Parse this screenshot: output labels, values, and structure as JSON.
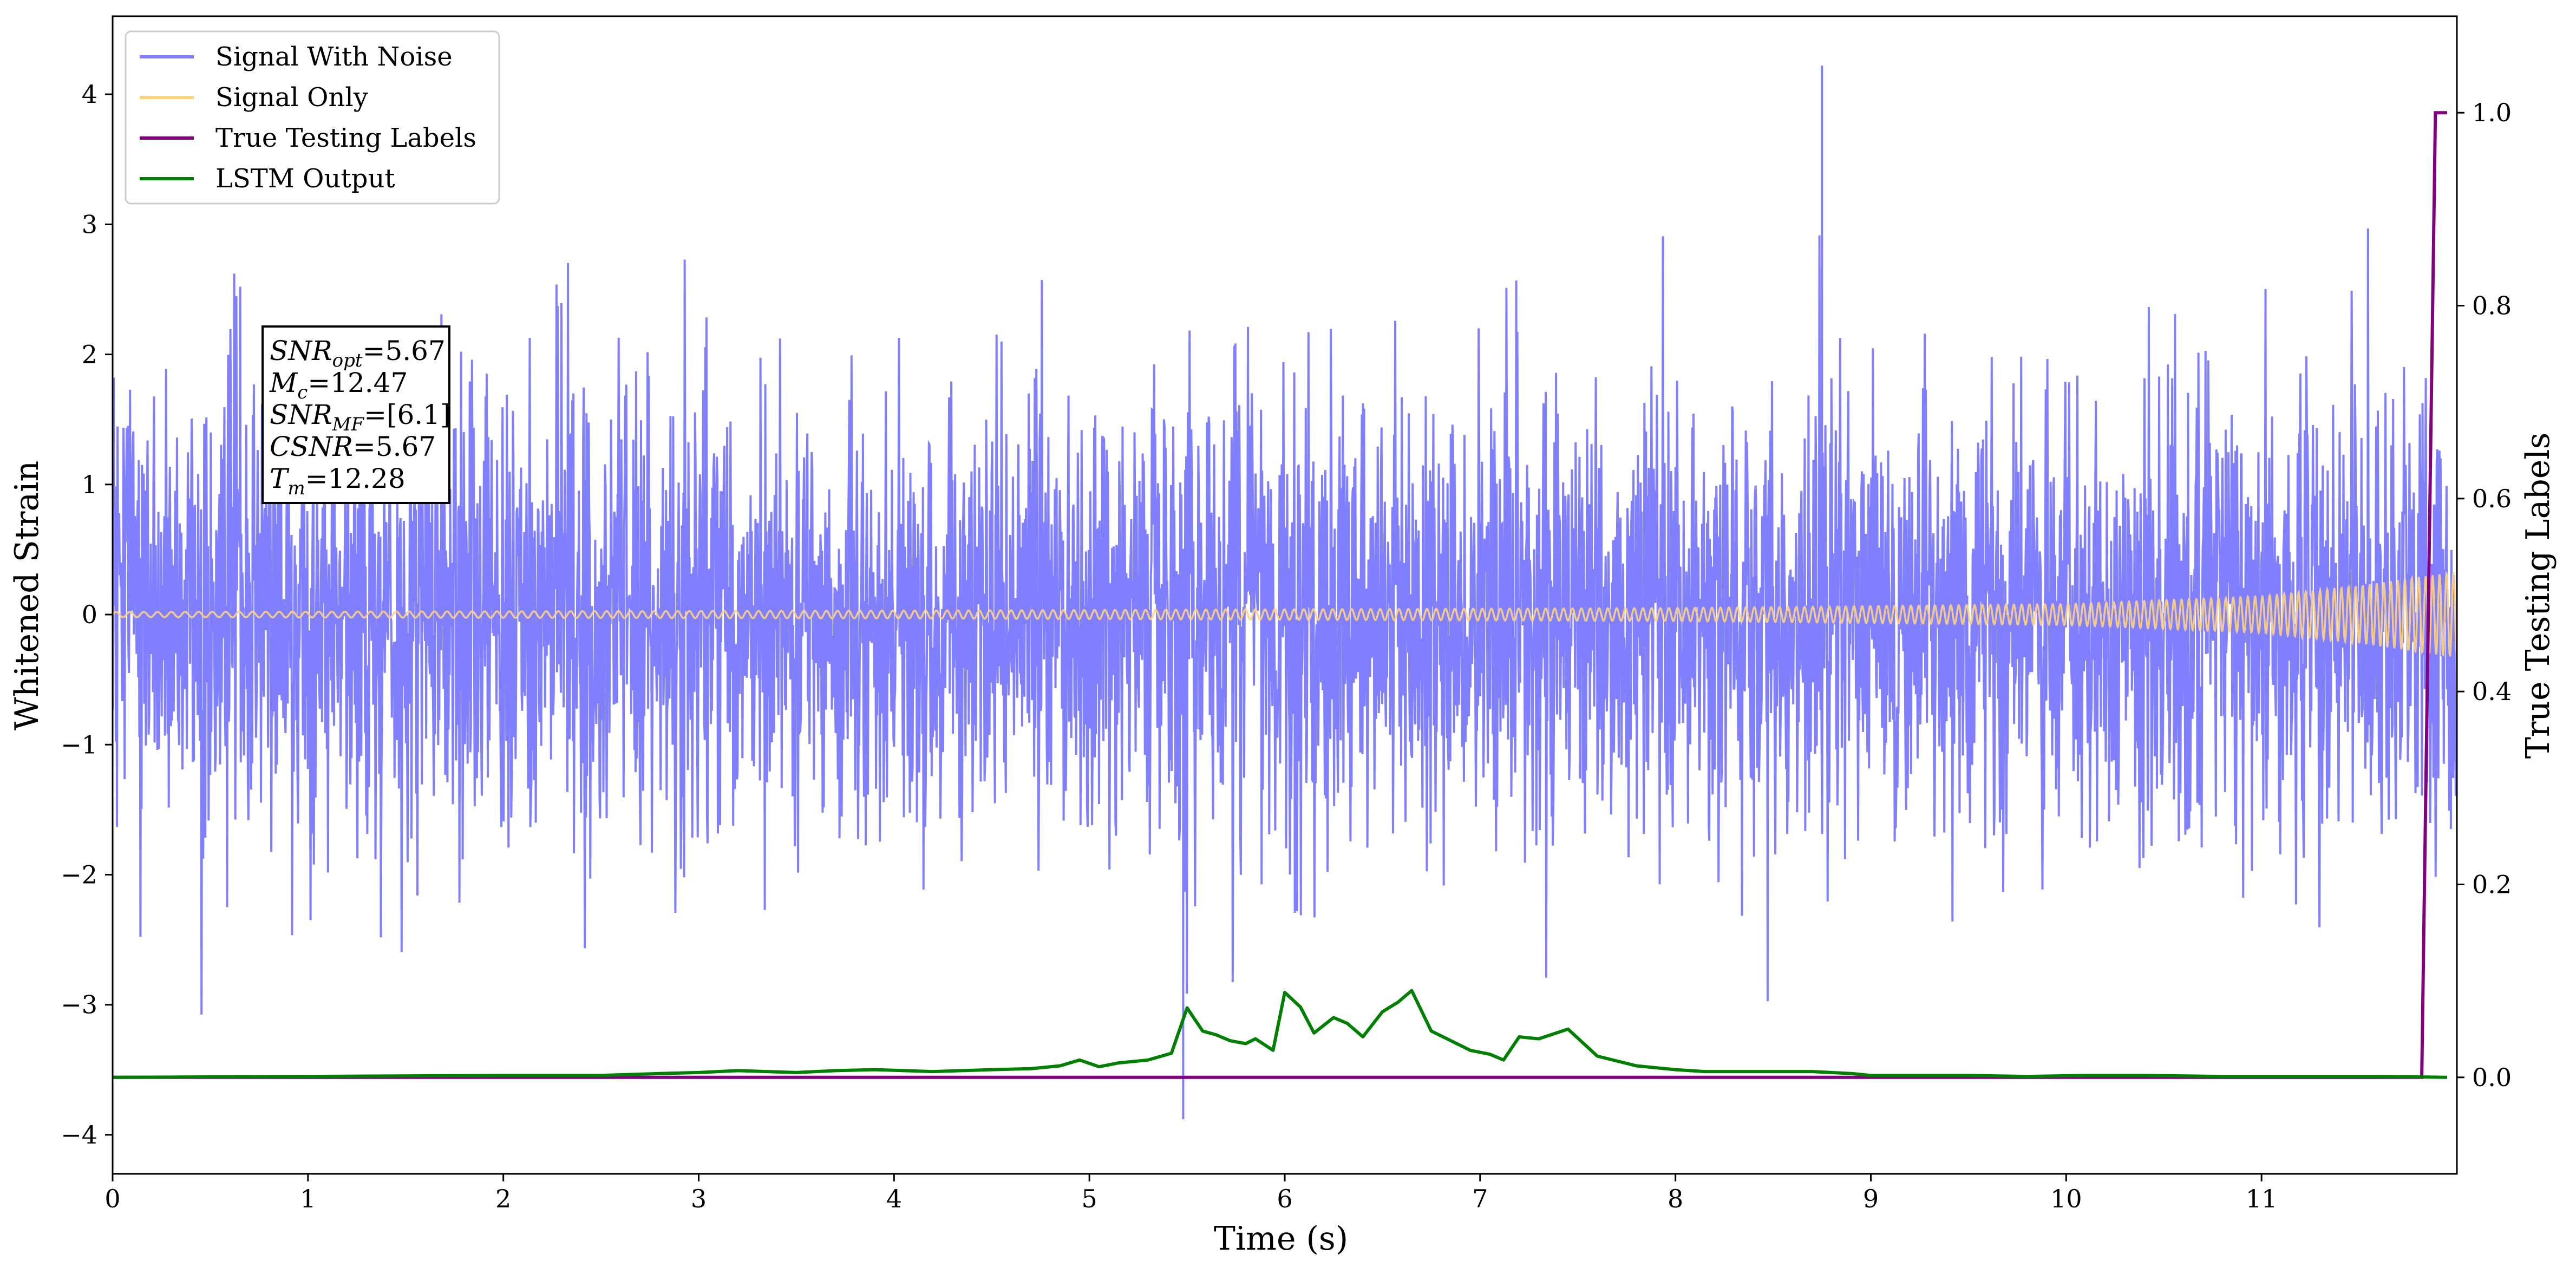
{
  "chart_data": {
    "type": "line",
    "xlabel": "Time (s)",
    "ylabel": "Whitened Strain",
    "y2label": "True Testing Labels",
    "xlim": [
      0,
      12.0
    ],
    "ylim": [
      -4.3,
      4.6
    ],
    "y2lim": [
      -0.1,
      1.1
    ],
    "x_ticks": [
      "0",
      "1",
      "2",
      "3",
      "4",
      "5",
      "6",
      "7",
      "8",
      "9",
      "10",
      "11"
    ],
    "y_ticks": [
      "−4",
      "−3",
      "−2",
      "−1",
      "0",
      "1",
      "2",
      "3",
      "4"
    ],
    "y2_ticks": [
      "0.0",
      "0.2",
      "0.4",
      "0.6",
      "0.8",
      "1.0"
    ],
    "legend_position": "upper-left",
    "series": [
      {
        "name": "Signal With Noise",
        "color": "#7f7fff",
        "axis": "left",
        "description_points": {
          "std": 0.85,
          "peak_max_x": 8.75,
          "peak_max_y": 4.22,
          "peak_min_x": 5.48,
          "peak_min_y": -3.88
        }
      },
      {
        "name": "Signal Only",
        "color": "#ffd27f",
        "axis": "left",
        "envelope": {
          "x": [
            0,
            4,
            8,
            10,
            11,
            11.5,
            12.0
          ],
          "amp": [
            0.02,
            0.03,
            0.05,
            0.08,
            0.14,
            0.22,
            0.33
          ]
        }
      },
      {
        "name": "True Testing Labels",
        "color": "#800080",
        "axis": "right",
        "x": [
          0,
          11.82,
          11.89,
          11.95
        ],
        "y": [
          0.0,
          0.0,
          1.0,
          1.0
        ]
      },
      {
        "name": "LSTM Output",
        "color": "#008000",
        "axis": "right",
        "x": [
          0,
          1,
          2,
          2.5,
          2.8,
          3.0,
          3.2,
          3.5,
          3.7,
          3.9,
          4.2,
          4.5,
          4.7,
          4.85,
          4.95,
          5.05,
          5.15,
          5.3,
          5.42,
          5.5,
          5.58,
          5.65,
          5.72,
          5.8,
          5.85,
          5.94,
          6.0,
          6.08,
          6.15,
          6.25,
          6.32,
          6.4,
          6.5,
          6.58,
          6.65,
          6.75,
          6.85,
          6.95,
          7.05,
          7.12,
          7.2,
          7.3,
          7.45,
          7.6,
          7.8,
          8.0,
          8.15,
          8.3,
          8.5,
          8.7,
          8.9,
          9.0,
          9.2,
          9.5,
          9.8,
          10.1,
          10.4,
          10.8,
          11.2,
          11.6,
          11.95
        ],
        "y": [
          0.0,
          0.001,
          0.002,
          0.002,
          0.004,
          0.005,
          0.007,
          0.005,
          0.007,
          0.008,
          0.006,
          0.008,
          0.009,
          0.012,
          0.018,
          0.011,
          0.015,
          0.018,
          0.025,
          0.072,
          0.048,
          0.044,
          0.038,
          0.035,
          0.04,
          0.028,
          0.088,
          0.073,
          0.046,
          0.062,
          0.056,
          0.042,
          0.068,
          0.078,
          0.09,
          0.048,
          0.038,
          0.028,
          0.024,
          0.018,
          0.042,
          0.04,
          0.05,
          0.022,
          0.012,
          0.008,
          0.006,
          0.006,
          0.006,
          0.006,
          0.004,
          0.002,
          0.002,
          0.002,
          0.001,
          0.002,
          0.002,
          0.001,
          0.001,
          0.001,
          0.0
        ]
      }
    ],
    "annotation": {
      "lines": [
        {
          "label": "SNR",
          "sub": "opt",
          "value": "=5.67"
        },
        {
          "label": "M",
          "sub": "c",
          "value": "=12.47"
        },
        {
          "label": "SNR",
          "sub": "MF",
          "value": "=[6.1]"
        },
        {
          "label": "CSNR",
          "sub": "",
          "value": "=5.67"
        },
        {
          "label": "T",
          "sub": "m",
          "value": "=12.28"
        }
      ]
    }
  }
}
